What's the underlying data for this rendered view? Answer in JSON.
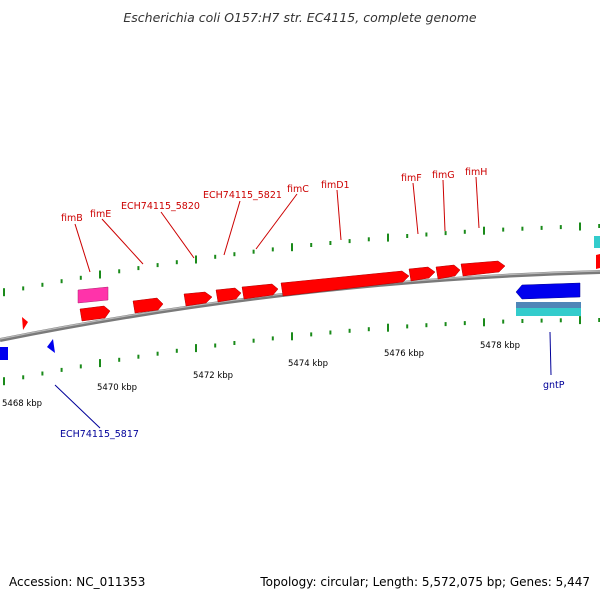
{
  "title": "Escherichia coli O157:H7 str. EC4115, complete genome",
  "footer": {
    "accession": "Accession: NC_011353",
    "summary": "Topology: circular; Length: 5,572,075 bp; Genes: 5,447"
  },
  "colors": {
    "forward_gene": "#ff0000",
    "reverse_gene": "#0000ee",
    "forward_label": "#cc0000",
    "reverse_label": "#000099",
    "tick_mark": "#1a8a1a",
    "backbone": "#808080",
    "magenta_feature": "#ff33aa",
    "cyan_feature": "#33cccc",
    "slate_feature": "#4f86b8"
  },
  "scale_labels": [
    "5468 kbp",
    "5470 kbp",
    "5472 kbp",
    "5474 kbp",
    "5476 kbp",
    "5478 kbp"
  ],
  "forward_gene_labels": [
    "fimB",
    "fimE",
    "ECH74115_5820",
    "ECH74115_5821",
    "fimC",
    "fimD1",
    "fimF",
    "fimG",
    "fimH"
  ],
  "reverse_gene_labels": [
    "ECH74115_5817",
    "gntP"
  ]
}
